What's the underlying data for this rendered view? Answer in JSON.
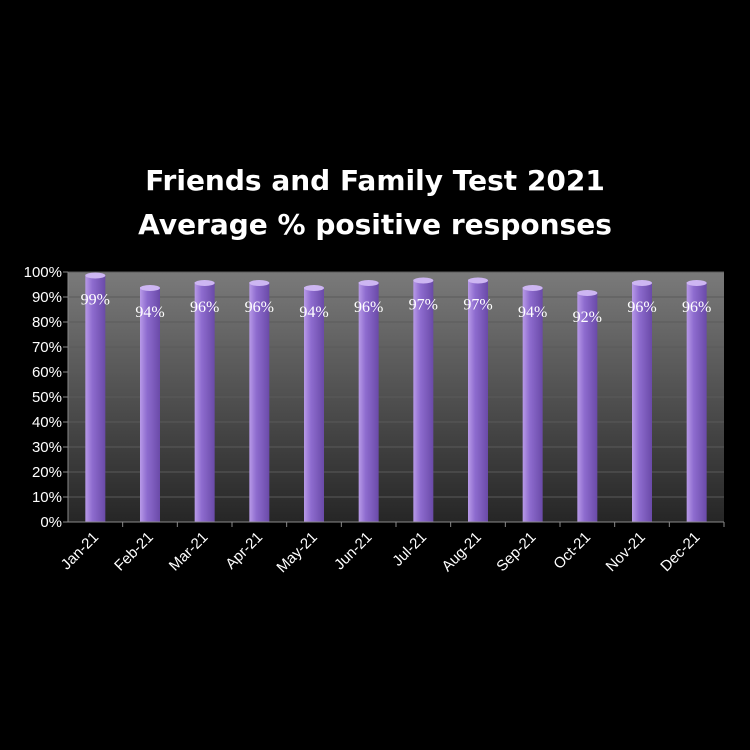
{
  "chart_data": {
    "type": "bar",
    "title": [
      "Friends and Family Test 2021",
      "Average % positive responses"
    ],
    "categories": [
      "Jan-21",
      "Feb-21",
      "Mar-21",
      "Apr-21",
      "May-21",
      "Jun-21",
      "Jul-21",
      "Aug-21",
      "Sep-21",
      "Oct-21",
      "Nov-21",
      "Dec-21"
    ],
    "values": [
      99,
      94,
      96,
      96,
      94,
      96,
      97,
      97,
      94,
      92,
      96,
      96
    ],
    "value_labels": [
      "99%",
      "94%",
      "96%",
      "96%",
      "94%",
      "96%",
      "97%",
      "97%",
      "94%",
      "92%",
      "96%",
      "96%"
    ],
    "y_ticks": [
      "0%",
      "10%",
      "20%",
      "30%",
      "40%",
      "50%",
      "60%",
      "70%",
      "80%",
      "90%",
      "100%"
    ],
    "ylim": [
      0,
      100
    ],
    "grid": true,
    "legend": "none",
    "colors": {
      "background": "#000000",
      "plot_top": "#7a7a7a",
      "plot_bottom": "#262626",
      "bar_light": "#b89ae8",
      "bar_mid": "#8e6ccf",
      "bar_dark": "#6a4aa8",
      "bar_top": "#cdb6f2",
      "text": "#ffffff"
    }
  }
}
